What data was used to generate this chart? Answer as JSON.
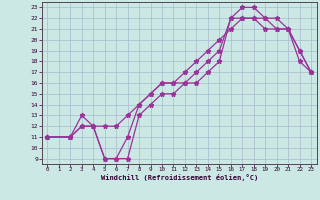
{
  "bg_color": "#cce8e4",
  "grid_color": "#aabbcc",
  "line_color": "#993399",
  "xlabel": "Windchill (Refroidissement éolien,°C)",
  "xlim": [
    -0.5,
    23.5
  ],
  "ylim": [
    8.5,
    23.5
  ],
  "xticks": [
    0,
    1,
    2,
    3,
    4,
    5,
    6,
    7,
    8,
    9,
    10,
    11,
    12,
    13,
    14,
    15,
    16,
    17,
    18,
    19,
    20,
    21,
    22,
    23
  ],
  "yticks": [
    9,
    10,
    11,
    12,
    13,
    14,
    15,
    16,
    17,
    18,
    19,
    20,
    21,
    22,
    23
  ],
  "line1_x": [
    0,
    2,
    3,
    4,
    5,
    6,
    7,
    8,
    9,
    10,
    11,
    12,
    13,
    14,
    15,
    16,
    17,
    18,
    19,
    20,
    21,
    22,
    23
  ],
  "line1_y": [
    11,
    11,
    12,
    12,
    12,
    12,
    13,
    14,
    15,
    16,
    16,
    17,
    18,
    19,
    20,
    21,
    22,
    22,
    22,
    22,
    21,
    19,
    17
  ],
  "line2_x": [
    0,
    2,
    3,
    4,
    5,
    6,
    7,
    8,
    9,
    10,
    11,
    12,
    13,
    14,
    15,
    16,
    17,
    18,
    19,
    20,
    21,
    22,
    23
  ],
  "line2_y": [
    11,
    11,
    12,
    12,
    9,
    9,
    11,
    14,
    15,
    16,
    16,
    16,
    17,
    18,
    19,
    22,
    22,
    22,
    21,
    21,
    21,
    18,
    17
  ],
  "line3_x": [
    0,
    2,
    3,
    4,
    5,
    6,
    7,
    8,
    9,
    10,
    11,
    12,
    13,
    14,
    15,
    16,
    17,
    18,
    19,
    20,
    21,
    22,
    23
  ],
  "line3_y": [
    11,
    11,
    13,
    12,
    9,
    9,
    9,
    13,
    14,
    15,
    15,
    16,
    16,
    17,
    18,
    22,
    23,
    23,
    22,
    21,
    21,
    19,
    17
  ]
}
